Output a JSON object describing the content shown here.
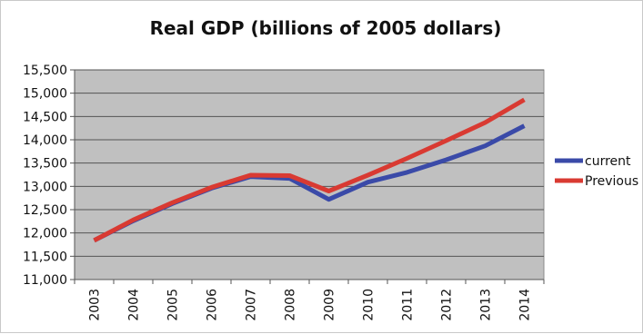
{
  "chart_data": {
    "type": "line",
    "title": "Real GDP (billions of 2005 dollars)",
    "xlabel": "",
    "ylabel": "",
    "categories": [
      "2003",
      "2004",
      "2005",
      "2006",
      "2007",
      "2008",
      "2009",
      "2010",
      "2011",
      "2012",
      "2013",
      "2014"
    ],
    "ylim": [
      11000,
      15500
    ],
    "yticks": [
      11000,
      11500,
      12000,
      12500,
      13000,
      13500,
      14000,
      14500,
      15000,
      15500
    ],
    "ytick_labels": [
      "11,000",
      "11,500",
      "12,000",
      "12,500",
      "13,000",
      "13,500",
      "14,000",
      "14,500",
      "15,000",
      "15,500"
    ],
    "grid": true,
    "legend_position": "right",
    "plot_background": "#c0c0c0",
    "series": [
      {
        "name": "current",
        "color": "#3a4aa8",
        "values": [
          11840,
          12260,
          12630,
          12960,
          13210,
          13170,
          12720,
          13090,
          13300,
          13570,
          13870,
          14300
        ]
      },
      {
        "name": "Previous",
        "color": "#d93a32",
        "values": [
          11840,
          12280,
          12650,
          12980,
          13240,
          13230,
          12900,
          13240,
          13600,
          13980,
          14370,
          14860
        ]
      }
    ]
  }
}
